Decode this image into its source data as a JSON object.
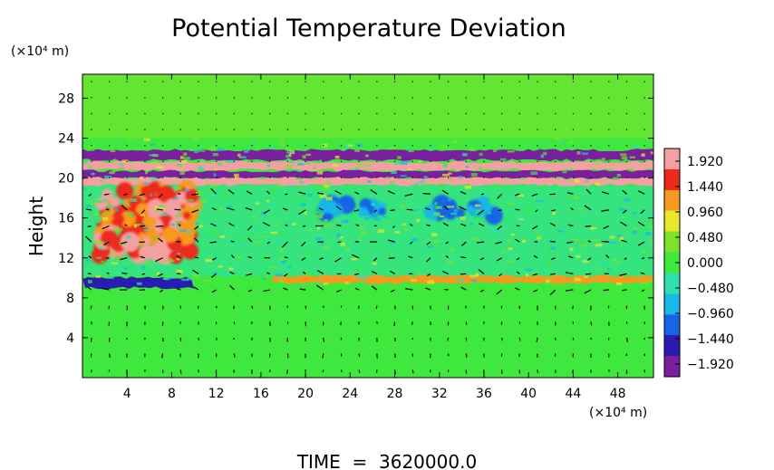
{
  "chart_data": {
    "type": "heatmap",
    "title": "Potential Temperature Deviation",
    "ylabel": "Height",
    "x_unit_label": "(×10⁴ m)",
    "y_unit_label": "(×10⁴ m)",
    "footer": "TIME  =  3620000.0",
    "xlim": [
      0,
      51.2
    ],
    "ylim": [
      0,
      30.4
    ],
    "x_ticks": [
      {
        "value": 4,
        "label": "4"
      },
      {
        "value": 8,
        "label": "8"
      },
      {
        "value": 12,
        "label": "12"
      },
      {
        "value": 16,
        "label": "16"
      },
      {
        "value": 20,
        "label": "20"
      },
      {
        "value": 24,
        "label": "24"
      },
      {
        "value": 28,
        "label": "28"
      },
      {
        "value": 32,
        "label": "32"
      },
      {
        "value": 36,
        "label": "36"
      },
      {
        "value": 40,
        "label": "40"
      },
      {
        "value": 44,
        "label": "44"
      },
      {
        "value": 48,
        "label": "48"
      }
    ],
    "y_ticks": [
      {
        "value": 4,
        "label": "4"
      },
      {
        "value": 8,
        "label": "8"
      },
      {
        "value": 12,
        "label": "12"
      },
      {
        "value": 16,
        "label": "16"
      },
      {
        "value": 20,
        "label": "20"
      },
      {
        "value": 24,
        "label": "24"
      },
      {
        "value": 28,
        "label": "28"
      }
    ],
    "colorbar": {
      "min": -2.16,
      "max": 2.16,
      "labels": [
        {
          "value": 1.92,
          "label": "1.920"
        },
        {
          "value": 1.44,
          "label": "1.440"
        },
        {
          "value": 0.96,
          "label": "0.960"
        },
        {
          "value": 0.48,
          "label": "0.480"
        },
        {
          "value": 0.0,
          "label": "0.000"
        },
        {
          "value": -0.48,
          "label": "−0.480"
        },
        {
          "value": -0.96,
          "label": "−0.960"
        },
        {
          "value": -1.44,
          "label": "−1.440"
        },
        {
          "value": -1.92,
          "label": "−1.920"
        }
      ],
      "colors": [
        "#7a1f9e",
        "#2a1cb0",
        "#1565e6",
        "#19b8e8",
        "#2ee0b0",
        "#3ee83c",
        "#7ee22a",
        "#e8e82a",
        "#f59a1e",
        "#ee2a1a",
        "#f4a0a0"
      ]
    },
    "features": [
      {
        "name": "upper-cold-band",
        "x": [
          0,
          51.2
        ],
        "y": [
          21.8,
          22.8
        ],
        "value": -2.0
      },
      {
        "name": "upper-warm-band",
        "x": [
          0,
          51.2
        ],
        "y": [
          20.8,
          21.6
        ],
        "value": 1.9
      },
      {
        "name": "mid-cold-band",
        "x": [
          0,
          51.2
        ],
        "y": [
          20.0,
          20.7
        ],
        "value": -2.0
      },
      {
        "name": "lower-warm-band",
        "x": [
          0,
          51.2
        ],
        "y": [
          19.3,
          20.0
        ],
        "value": 1.9
      },
      {
        "name": "warm-plume",
        "x": [
          1.5,
          10
        ],
        "y": [
          12,
          19
        ],
        "value": 2.0
      },
      {
        "name": "cold-patch-right",
        "x": [
          31,
          37
        ],
        "y": [
          16,
          17.5
        ],
        "value": -1.3
      },
      {
        "name": "cold-patch-mid",
        "x": [
          21,
          27
        ],
        "y": [
          16.5,
          17.5
        ],
        "value": -1.2
      },
      {
        "name": "warm-line",
        "x": [
          17,
          51.2
        ],
        "y": [
          9.5,
          10.2
        ],
        "value": 1.3
      },
      {
        "name": "cold-base",
        "x": [
          0,
          10
        ],
        "y": [
          9.0,
          10.0
        ],
        "value": -1.6
      }
    ]
  }
}
